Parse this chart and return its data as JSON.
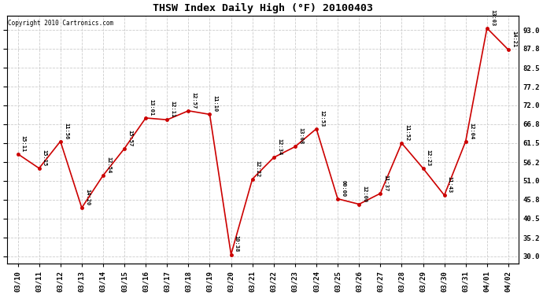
{
  "title": "THSW Index Daily High (°F) 20100403",
  "copyright": "Copyright 2010 Cartronics.com",
  "background_color": "#ffffff",
  "grid_color": "#cccccc",
  "line_color": "#cc0000",
  "marker_color": "#cc0000",
  "text_color": "#000000",
  "dates": [
    "03/10",
    "03/11",
    "03/12",
    "03/13",
    "03/14",
    "03/15",
    "03/16",
    "03/17",
    "03/18",
    "03/19",
    "03/20",
    "03/21",
    "03/22",
    "03/23",
    "03/24",
    "03/25",
    "03/26",
    "03/27",
    "03/28",
    "03/29",
    "03/30",
    "03/31",
    "04/01",
    "04/02"
  ],
  "values": [
    58.5,
    54.5,
    62.0,
    43.5,
    52.5,
    60.0,
    68.5,
    68.0,
    70.5,
    69.5,
    30.5,
    51.5,
    57.5,
    60.5,
    65.5,
    46.0,
    44.5,
    47.5,
    61.5,
    54.5,
    47.0,
    62.0,
    93.5,
    87.5
  ],
  "labels": [
    "15:11",
    "15:15",
    "11:56",
    "14:20",
    "12:54",
    "15:57",
    "13:01",
    "12:11",
    "12:57",
    "11:10",
    "10:38",
    "12:22",
    "12:34",
    "13:08",
    "12:53",
    "00:00",
    "12:00",
    "11:37",
    "11:52",
    "12:23",
    "11:43",
    "12:04",
    "13:03",
    "14:21"
  ],
  "ylim": [
    28.0,
    97.0
  ],
  "yticks": [
    30.0,
    35.2,
    40.5,
    45.8,
    51.0,
    56.2,
    61.5,
    66.8,
    72.0,
    77.2,
    82.5,
    87.8,
    93.0
  ],
  "figsize": [
    6.9,
    3.75
  ],
  "dpi": 100
}
